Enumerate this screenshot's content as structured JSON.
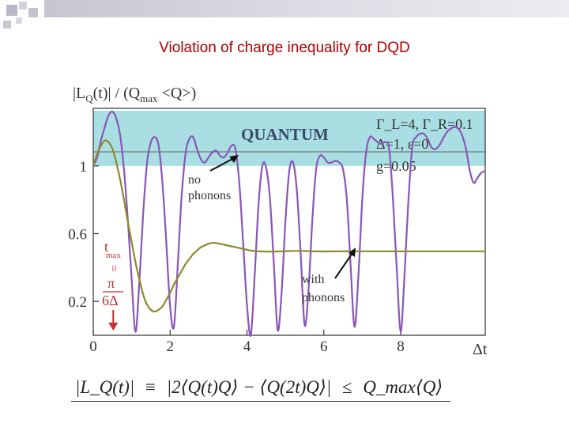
{
  "slide": {
    "title": "Violation of charge inequality for DQD"
  },
  "colors": {
    "title_red": "#b00000",
    "quantum_band": "#a9dfe3",
    "no_phonons_line": "#8a55b8",
    "with_phonons_line": "#8c8a2a",
    "marker_arrow": "#c03030"
  },
  "chart_data": {
    "type": "line",
    "title": "",
    "ylabel": "|L_Q(t)| / (Q_max <Q>)",
    "xlabel": "Δt",
    "xlim": [
      0,
      10.2
    ],
    "ylim": [
      0,
      1.34
    ],
    "xticks": [
      0,
      2,
      4,
      6,
      8
    ],
    "yticks": [
      0.2,
      0.6,
      1
    ],
    "x_tick_labels": [
      "0",
      "2",
      "4",
      "6",
      "8"
    ],
    "y_tick_labels": [
      "0.2",
      "0.6",
      "1"
    ],
    "grid": false,
    "region": {
      "label": "QUANTUM",
      "y_from": 1.0,
      "y_to": 1.34
    },
    "parameters": [
      "Γ_L=4, Γ_R=0.1",
      "Δ=1, ε=0",
      "g=0.05"
    ],
    "series": [
      {
        "name": "no phonons",
        "x": [
          0.0,
          0.1,
          0.2,
          0.3,
          0.4,
          0.5,
          0.6,
          0.7,
          0.8,
          0.9,
          1.0,
          1.1,
          1.2,
          1.3,
          1.4,
          1.5,
          1.6,
          1.7,
          1.8,
          1.9,
          2.0,
          2.1,
          2.2,
          2.3,
          2.4,
          2.5,
          2.6,
          2.7,
          2.8,
          2.9,
          3.0,
          3.1,
          3.2,
          3.3,
          3.4,
          3.5,
          3.6,
          3.7,
          3.8,
          3.9,
          4.0,
          4.1,
          4.2,
          4.3,
          4.4,
          4.5,
          4.6,
          4.7,
          4.8,
          4.9,
          5.0,
          5.1,
          5.2,
          5.3,
          5.4,
          5.5,
          5.6,
          5.7,
          5.8,
          5.9,
          6.0,
          6.1,
          6.2,
          6.3,
          6.4,
          6.5,
          6.6,
          6.7,
          6.8,
          6.9,
          7.0,
          7.1,
          7.2,
          7.3,
          7.4,
          7.5,
          7.6,
          7.7,
          7.8,
          7.9,
          8.0,
          8.1,
          8.2,
          8.3,
          8.4,
          8.5,
          8.6,
          8.7,
          8.8,
          8.9,
          9.0,
          9.1,
          9.2,
          9.3,
          9.4,
          9.5,
          9.6,
          9.7,
          9.8,
          9.9,
          10.0,
          10.1,
          10.2
        ],
        "y": [
          1.0,
          1.05,
          1.15,
          1.23,
          1.3,
          1.32,
          1.28,
          1.18,
          0.98,
          0.68,
          0.33,
          0.02,
          0.32,
          0.72,
          1.02,
          1.14,
          1.17,
          1.12,
          0.9,
          0.55,
          0.17,
          0.05,
          0.42,
          0.82,
          1.07,
          1.16,
          1.17,
          1.1,
          1.04,
          1.02,
          1.05,
          1.08,
          1.09,
          1.06,
          1.05,
          1.08,
          1.12,
          1.1,
          0.9,
          0.55,
          0.18,
          0.0,
          0.35,
          0.77,
          1.0,
          0.99,
          0.8,
          0.42,
          0.03,
          0.25,
          0.67,
          0.97,
          1.02,
          0.85,
          0.47,
          0.06,
          0.26,
          0.68,
          0.98,
          1.06,
          1.05,
          1.02,
          1.02,
          1.03,
          1.02,
          0.98,
          0.8,
          0.4,
          0.05,
          0.35,
          0.8,
          1.08,
          1.17,
          1.16,
          1.14,
          1.13,
          1.14,
          1.1,
          0.8,
          0.38,
          0.02,
          0.36,
          0.79,
          1.11,
          1.17,
          1.19,
          1.19,
          1.16,
          1.11,
          1.1,
          1.12,
          1.16,
          1.2,
          1.22,
          1.23,
          1.22,
          1.18,
          1.1,
          0.97,
          0.9,
          0.93,
          0.96,
          0.97
        ]
      },
      {
        "name": "with phonons",
        "x": [
          0.0,
          0.1,
          0.2,
          0.3,
          0.4,
          0.5,
          0.6,
          0.7,
          0.8,
          0.9,
          1.0,
          1.1,
          1.2,
          1.3,
          1.4,
          1.5,
          1.6,
          1.7,
          1.8,
          1.9,
          2.0,
          2.1,
          2.2,
          2.3,
          2.4,
          2.5,
          2.6,
          2.7,
          2.8,
          2.9,
          3.0,
          3.1,
          3.2,
          3.3,
          3.4,
          3.5,
          3.6,
          3.7,
          3.8,
          3.9,
          4.0,
          4.1,
          4.2,
          4.3,
          4.4,
          4.5,
          4.6,
          4.7,
          4.8,
          4.9,
          5.0,
          5.2,
          5.4,
          5.6,
          5.8,
          6.0,
          6.4,
          6.8,
          7.2,
          7.6,
          8.0,
          8.4,
          8.8,
          9.2,
          9.6,
          10.0,
          10.2
        ],
        "y": [
          1.0,
          1.07,
          1.12,
          1.15,
          1.14,
          1.1,
          1.02,
          0.92,
          0.8,
          0.67,
          0.55,
          0.43,
          0.33,
          0.24,
          0.18,
          0.15,
          0.14,
          0.15,
          0.17,
          0.21,
          0.25,
          0.3,
          0.34,
          0.38,
          0.42,
          0.45,
          0.48,
          0.5,
          0.52,
          0.53,
          0.54,
          0.545,
          0.545,
          0.54,
          0.535,
          0.53,
          0.525,
          0.52,
          0.515,
          0.51,
          0.505,
          0.5,
          0.498,
          0.496,
          0.495,
          0.494,
          0.494,
          0.494,
          0.495,
          0.496,
          0.497,
          0.498,
          0.498,
          0.497,
          0.496,
          0.495,
          0.496,
          0.496,
          0.496,
          0.496,
          0.496,
          0.496,
          0.496,
          0.496,
          0.496,
          0.496,
          0.496
        ]
      }
    ],
    "annotations": {
      "no_phonons": [
        "no",
        "phonons"
      ],
      "with_phonons": [
        "with",
        "phonons"
      ],
      "tmax_marker": {
        "at_x": 0.52,
        "label_top": "t",
        "label_sub": "max",
        "equals": "=",
        "numerator": "π",
        "denominator": "6Δ"
      }
    },
    "formula": {
      "lhs": "|L_Q(t)|",
      "equiv": "≡",
      "rhs": "|2⟨Q(t)Q⟩ − ⟨Q(2t)Q⟩|",
      "leq": "≤",
      "bound": "Q_max⟨Q⟩"
    }
  }
}
